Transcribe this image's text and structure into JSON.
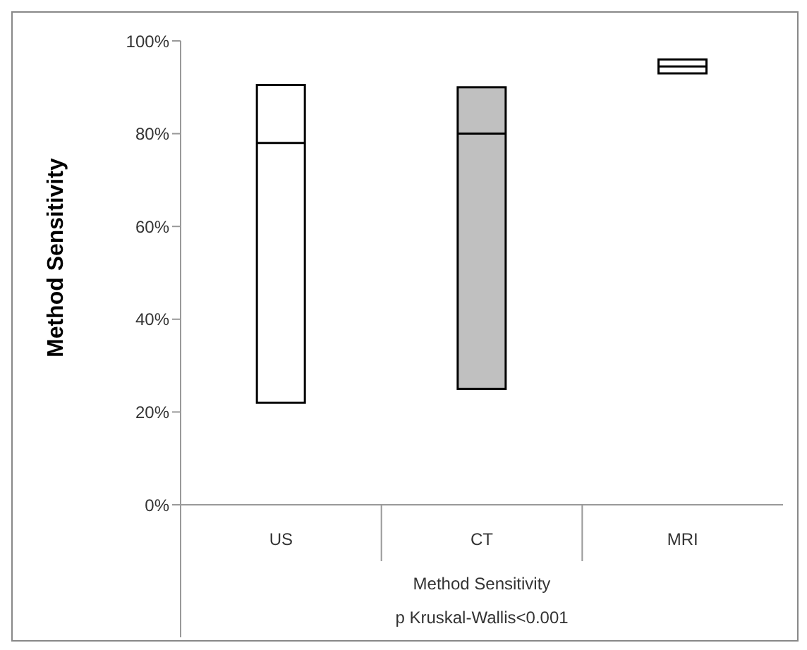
{
  "chart_data": {
    "type": "box",
    "categories": [
      "US",
      "CT",
      "MRI"
    ],
    "ylabel": "Method Sensitivity",
    "xlabel": "Method Sensitivity",
    "annotations": [
      "p Kruskal-Wallis<0.001"
    ],
    "boxes": [
      {
        "low": 22,
        "q1": 22,
        "median": 78,
        "q3": 90.5,
        "high": 90.5
      },
      {
        "low": 25,
        "q1": 25,
        "median": 80,
        "q3": 90,
        "high": 90
      },
      {
        "low": 93,
        "q1": 93,
        "median": 94.5,
        "q3": 96,
        "high": 96
      }
    ],
    "colors": [
      "#ffffff",
      "#c0c0c0",
      "#ffffff"
    ],
    "ylim": [
      0,
      100
    ],
    "yticks": [
      {
        "value": 0,
        "label": "0%"
      },
      {
        "value": 20,
        "label": "20%"
      },
      {
        "value": 40,
        "label": "40%"
      },
      {
        "value": 60,
        "label": "60%"
      },
      {
        "value": 80,
        "label": "80%"
      },
      {
        "value": 100,
        "label": "100%"
      }
    ],
    "grid": false
  }
}
